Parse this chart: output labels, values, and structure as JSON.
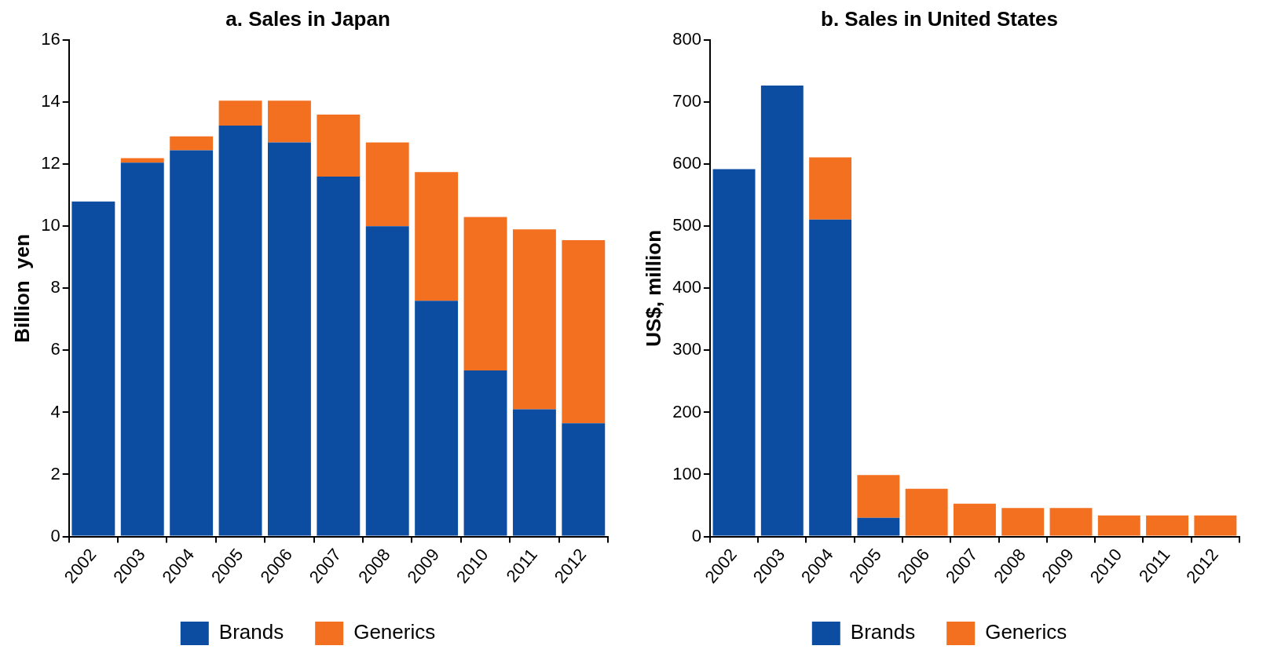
{
  "chart_data": [
    {
      "type": "bar",
      "title": "a. Sales in Japan",
      "ylabel": "Billion  yen",
      "categories": [
        "2002",
        "2003",
        "2004",
        "2005",
        "2006",
        "2007",
        "2008",
        "2009",
        "2010",
        "2011",
        "2012"
      ],
      "stacked": true,
      "ylim": [
        0,
        16
      ],
      "yticks": [
        0,
        2,
        4,
        6,
        8,
        10,
        12,
        14,
        16
      ],
      "grid": false,
      "legend": "bottom",
      "series": [
        {
          "name": "Brands",
          "color": "#0d4da1",
          "values": [
            10.8,
            12.05,
            12.45,
            13.25,
            12.7,
            11.6,
            10.0,
            7.6,
            5.35,
            4.1,
            3.65
          ]
        },
        {
          "name": "Generics",
          "color": "#f37021",
          "values": [
            0,
            0.15,
            0.45,
            0.8,
            1.35,
            2.0,
            2.7,
            4.15,
            4.95,
            5.8,
            5.9
          ]
        }
      ]
    },
    {
      "type": "bar",
      "title": "b. Sales in United States",
      "ylabel": "US$, million",
      "categories": [
        "2002",
        "2003",
        "2004",
        "2005",
        "2006",
        "2007",
        "2008",
        "2009",
        "2010",
        "2011",
        "2012"
      ],
      "stacked": true,
      "ylim": [
        0,
        800
      ],
      "yticks": [
        0,
        100,
        200,
        300,
        400,
        500,
        600,
        700,
        800
      ],
      "grid": false,
      "legend": "bottom",
      "series": [
        {
          "name": "Brands",
          "color": "#0d4da1",
          "values": [
            592,
            727,
            511,
            30,
            0,
            0,
            0,
            0,
            0,
            0,
            0
          ]
        },
        {
          "name": "Generics",
          "color": "#f37021",
          "values": [
            0,
            0,
            100,
            69,
            77,
            53,
            46,
            46,
            34,
            34,
            34
          ]
        }
      ]
    }
  ]
}
